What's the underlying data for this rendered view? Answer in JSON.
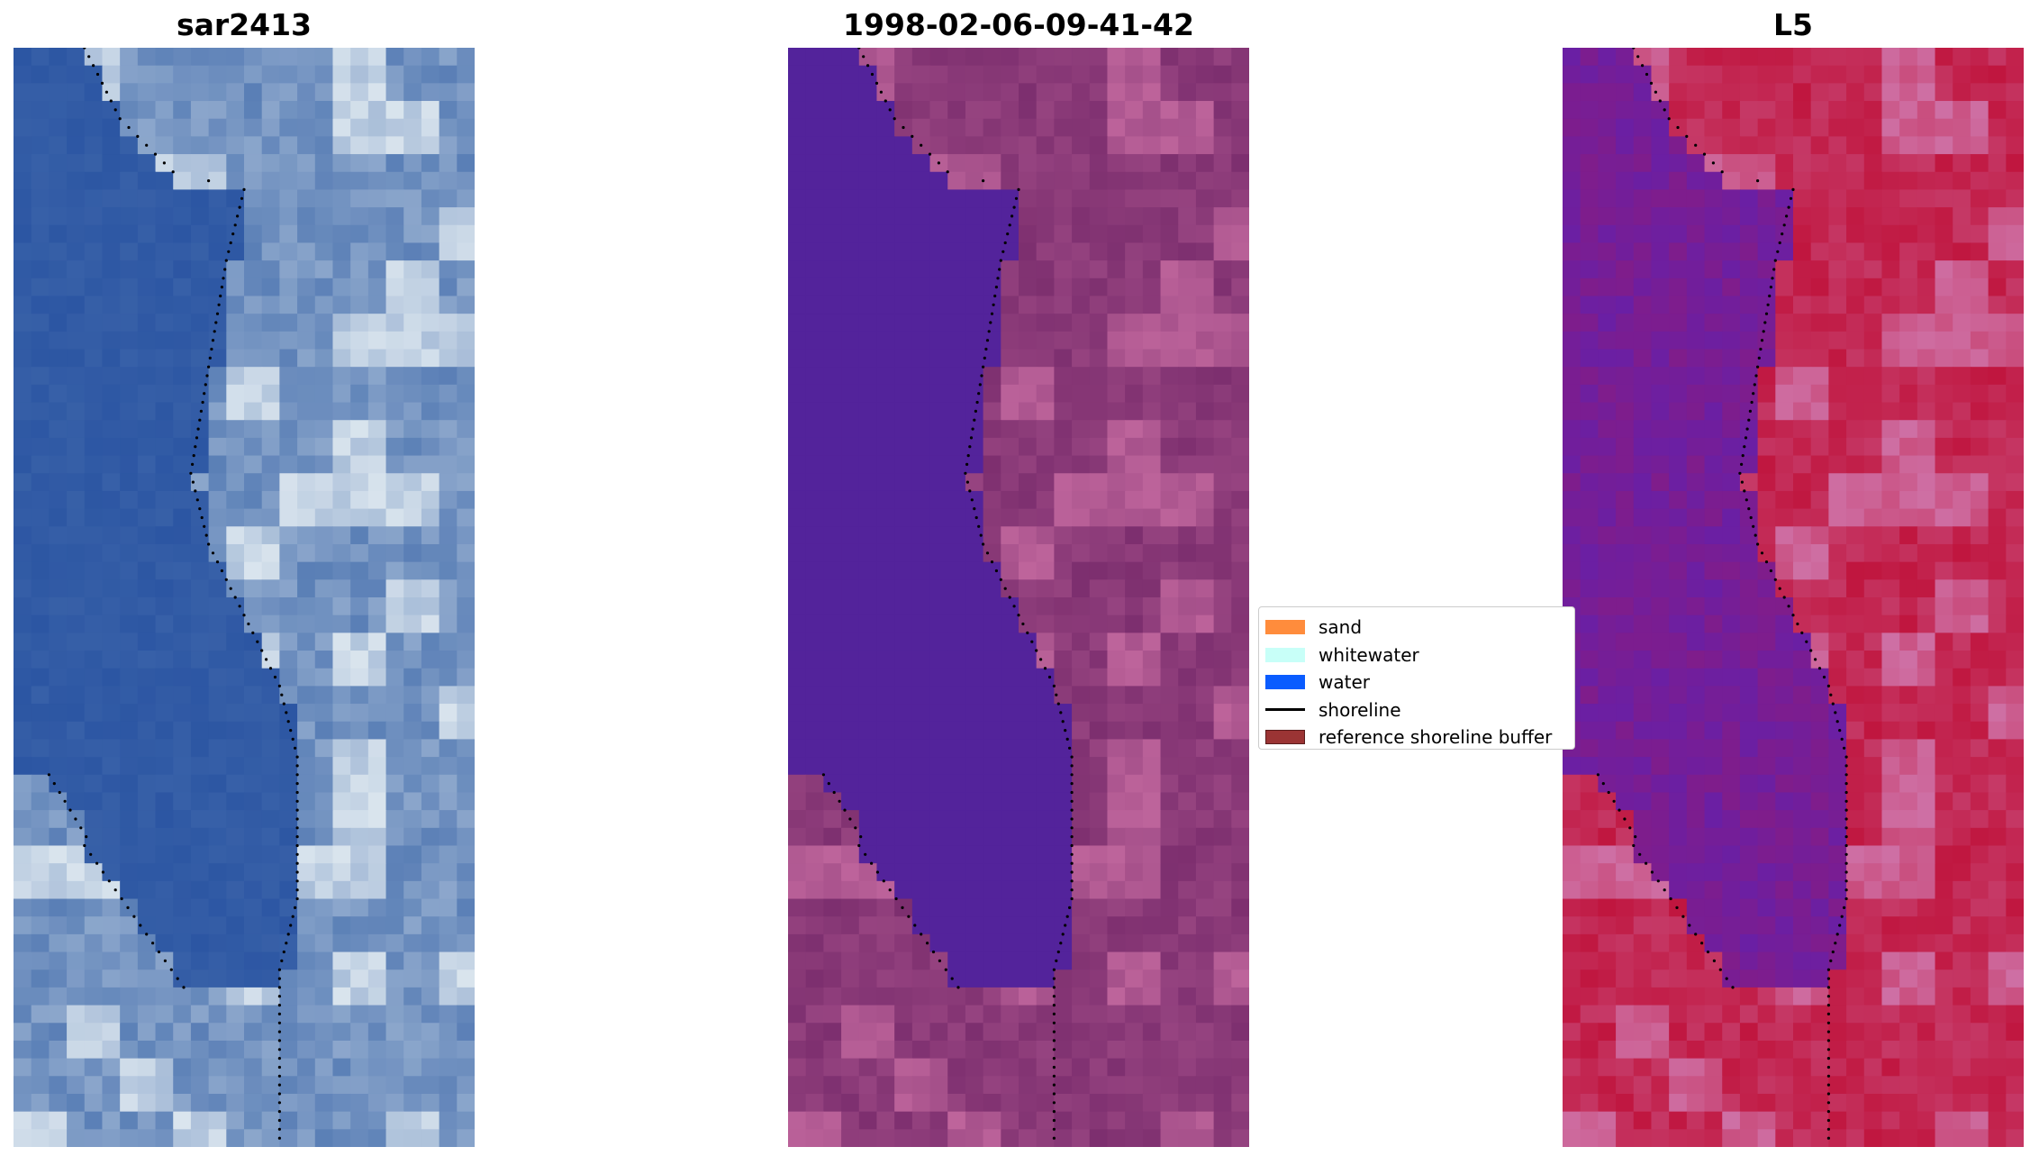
{
  "figure": {
    "panels": [
      {
        "title": "sar2413",
        "image": "true-color RGB satellite image"
      },
      {
        "title": "1998-02-06-09-41-42",
        "image": "classified image overlay"
      },
      {
        "title": "L5",
        "image": "false-color composite"
      }
    ],
    "legend": {
      "placement": "between-panels-center-right",
      "items": [
        {
          "label": "sand",
          "color": "#ff8c3c",
          "kind": "patch"
        },
        {
          "label": "whitewater",
          "color": "#c8fff8",
          "kind": "patch"
        },
        {
          "label": "water",
          "color": "#0a5cff",
          "kind": "patch"
        },
        {
          "label": "shoreline",
          "color": "#000000",
          "kind": "line"
        },
        {
          "label": "reference shoreline buffer",
          "color": "#9b3434",
          "kind": "patch"
        }
      ]
    },
    "colors": {
      "rgb_water": "#2c56a3",
      "rgb_land": "#5a7fb6",
      "class_water": "#53239b",
      "class_land": "#7d2f6f",
      "fc_water": "#6a1fa4",
      "fc_land": "#c0163f",
      "shoreline": "#000000"
    }
  }
}
